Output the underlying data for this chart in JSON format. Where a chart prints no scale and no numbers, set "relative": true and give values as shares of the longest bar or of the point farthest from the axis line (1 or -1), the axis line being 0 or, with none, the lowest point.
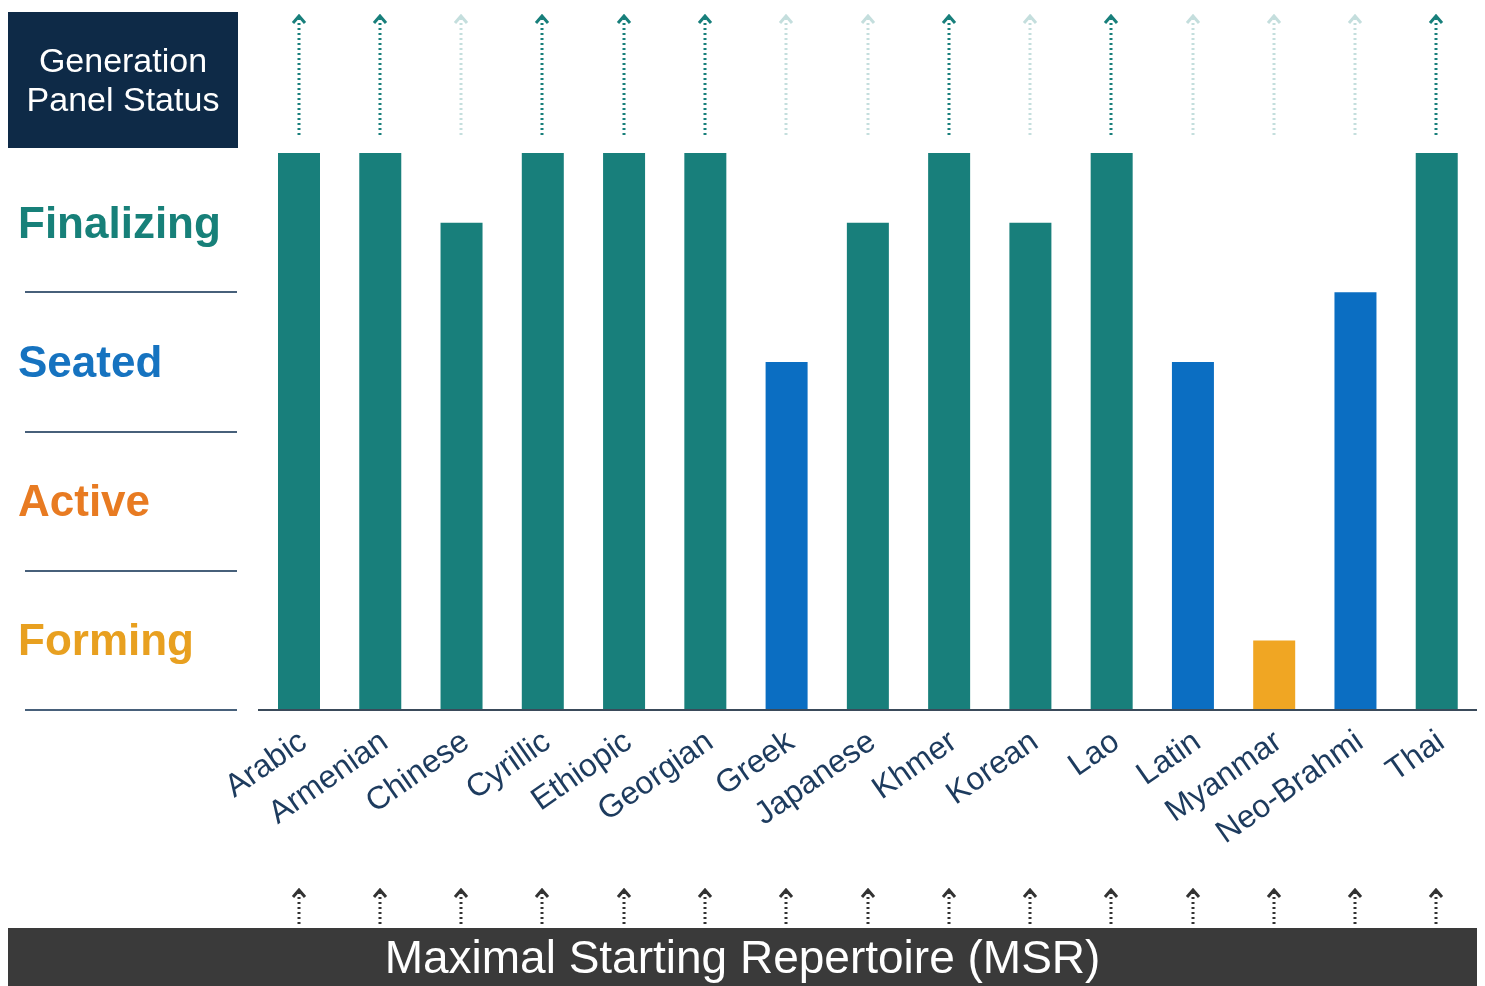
{
  "chart_data": {
    "type": "bar",
    "relative": true,
    "ylabel": "Generation Panel Status",
    "xlabel": "Maximal Starting Repertoire (MSR)",
    "categories": [
      "Arabic",
      "Armenian",
      "Chinese",
      "Cyrillic",
      "Ethiopic",
      "Georgian",
      "Greek",
      "Japanese",
      "Khmer",
      "Korean",
      "Lao",
      "Latin",
      "Myanmar",
      "Neo-Brahmi",
      "Thai"
    ],
    "values": [
      1,
      1,
      0.875,
      1,
      1,
      1,
      0.625,
      0.875,
      1,
      0.875,
      1,
      0.625,
      0.125,
      0.75,
      1
    ],
    "colors": [
      "#187f7b",
      "#187f7b",
      "#187f7b",
      "#187f7b",
      "#187f7b",
      "#187f7b",
      "#0b6ec2",
      "#187f7b",
      "#187f7b",
      "#187f7b",
      "#187f7b",
      "#0b6ec2",
      "#f0a623",
      "#0b6ec2",
      "#187f7b"
    ],
    "annotations": [
      "Finalizing",
      "Seated",
      "Active",
      "Forming"
    ],
    "legend": false
  }
}
